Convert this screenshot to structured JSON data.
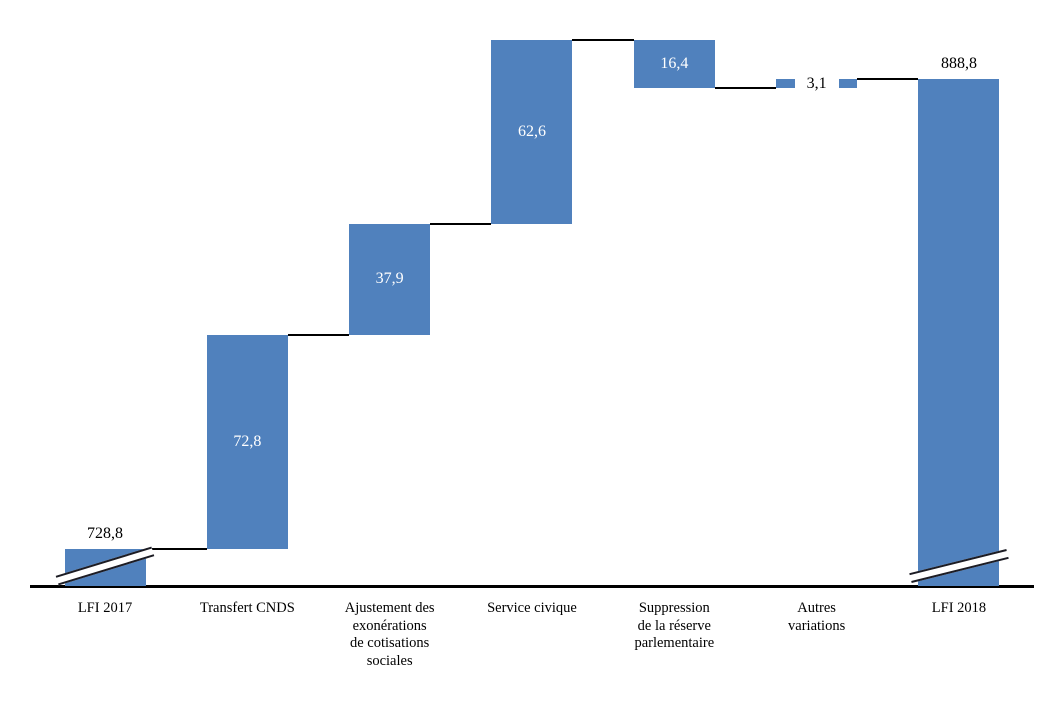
{
  "chart_data": {
    "type": "bar",
    "subtype": "waterfall",
    "title": "",
    "xlabel": "",
    "ylabel": "",
    "decimal_style": "comma",
    "legend": "none",
    "grid": "off",
    "colors": {
      "bar_fill": "#5081BD",
      "axis": "#000000",
      "label_outside": "#000000",
      "label_inside": "#FFFFFF",
      "on_bar_label_bg": "#FFFFFF"
    },
    "axis": {
      "baseline_value": 0,
      "broken_axis": true,
      "break_on_total_bars": true
    },
    "categories": [
      "LFI 2017",
      "Transfert CNDS",
      "Ajustement des exonérations de cotisations sociales",
      "Service civique",
      "Suppression de la réserve parlementaire",
      "Autres variations",
      "LFI 2018"
    ],
    "bars": [
      {
        "name": "lfi-2017",
        "kind": "total",
        "value": 728.8,
        "display": "728,8",
        "start": 0,
        "end": 728.8,
        "value_label_position": "above",
        "axis_break": true,
        "label_lines": [
          "LFI 2017"
        ]
      },
      {
        "name": "transfert-cnds",
        "kind": "increase",
        "value": 72.8,
        "display": "72,8",
        "start": 728.8,
        "end": 801.6,
        "value_label_position": "inside",
        "axis_break": false,
        "label_lines": [
          "Transfert CNDS"
        ]
      },
      {
        "name": "ajustement-exonerations",
        "kind": "increase",
        "value": 37.9,
        "display": "37,9",
        "start": 801.6,
        "end": 839.5,
        "value_label_position": "inside",
        "axis_break": false,
        "label_lines": [
          "Ajustement des",
          "exonérations",
          "de cotisations",
          "sociales"
        ]
      },
      {
        "name": "service-civique",
        "kind": "increase",
        "value": 62.6,
        "display": "62,6",
        "start": 839.5,
        "end": 902.1,
        "value_label_position": "inside",
        "axis_break": false,
        "label_lines": [
          "Service civique"
        ]
      },
      {
        "name": "suppression-reserve",
        "kind": "decrease",
        "value": -16.4,
        "display": "16,4",
        "start": 902.1,
        "end": 885.7,
        "value_label_position": "inside",
        "axis_break": false,
        "label_lines": [
          "Suppression",
          "de la réserve",
          "parlementaire"
        ]
      },
      {
        "name": "autres-variations",
        "kind": "increase",
        "value": 3.1,
        "display": "3,1",
        "start": 885.7,
        "end": 888.8,
        "value_label_position": "on",
        "axis_break": false,
        "label_lines": [
          "Autres",
          "variations"
        ]
      },
      {
        "name": "lfi-2018",
        "kind": "total",
        "value": 888.8,
        "display": "888,8",
        "start": 0,
        "end": 888.8,
        "value_label_position": "above",
        "axis_break": true,
        "label_lines": [
          "LFI 2018"
        ]
      }
    ]
  }
}
